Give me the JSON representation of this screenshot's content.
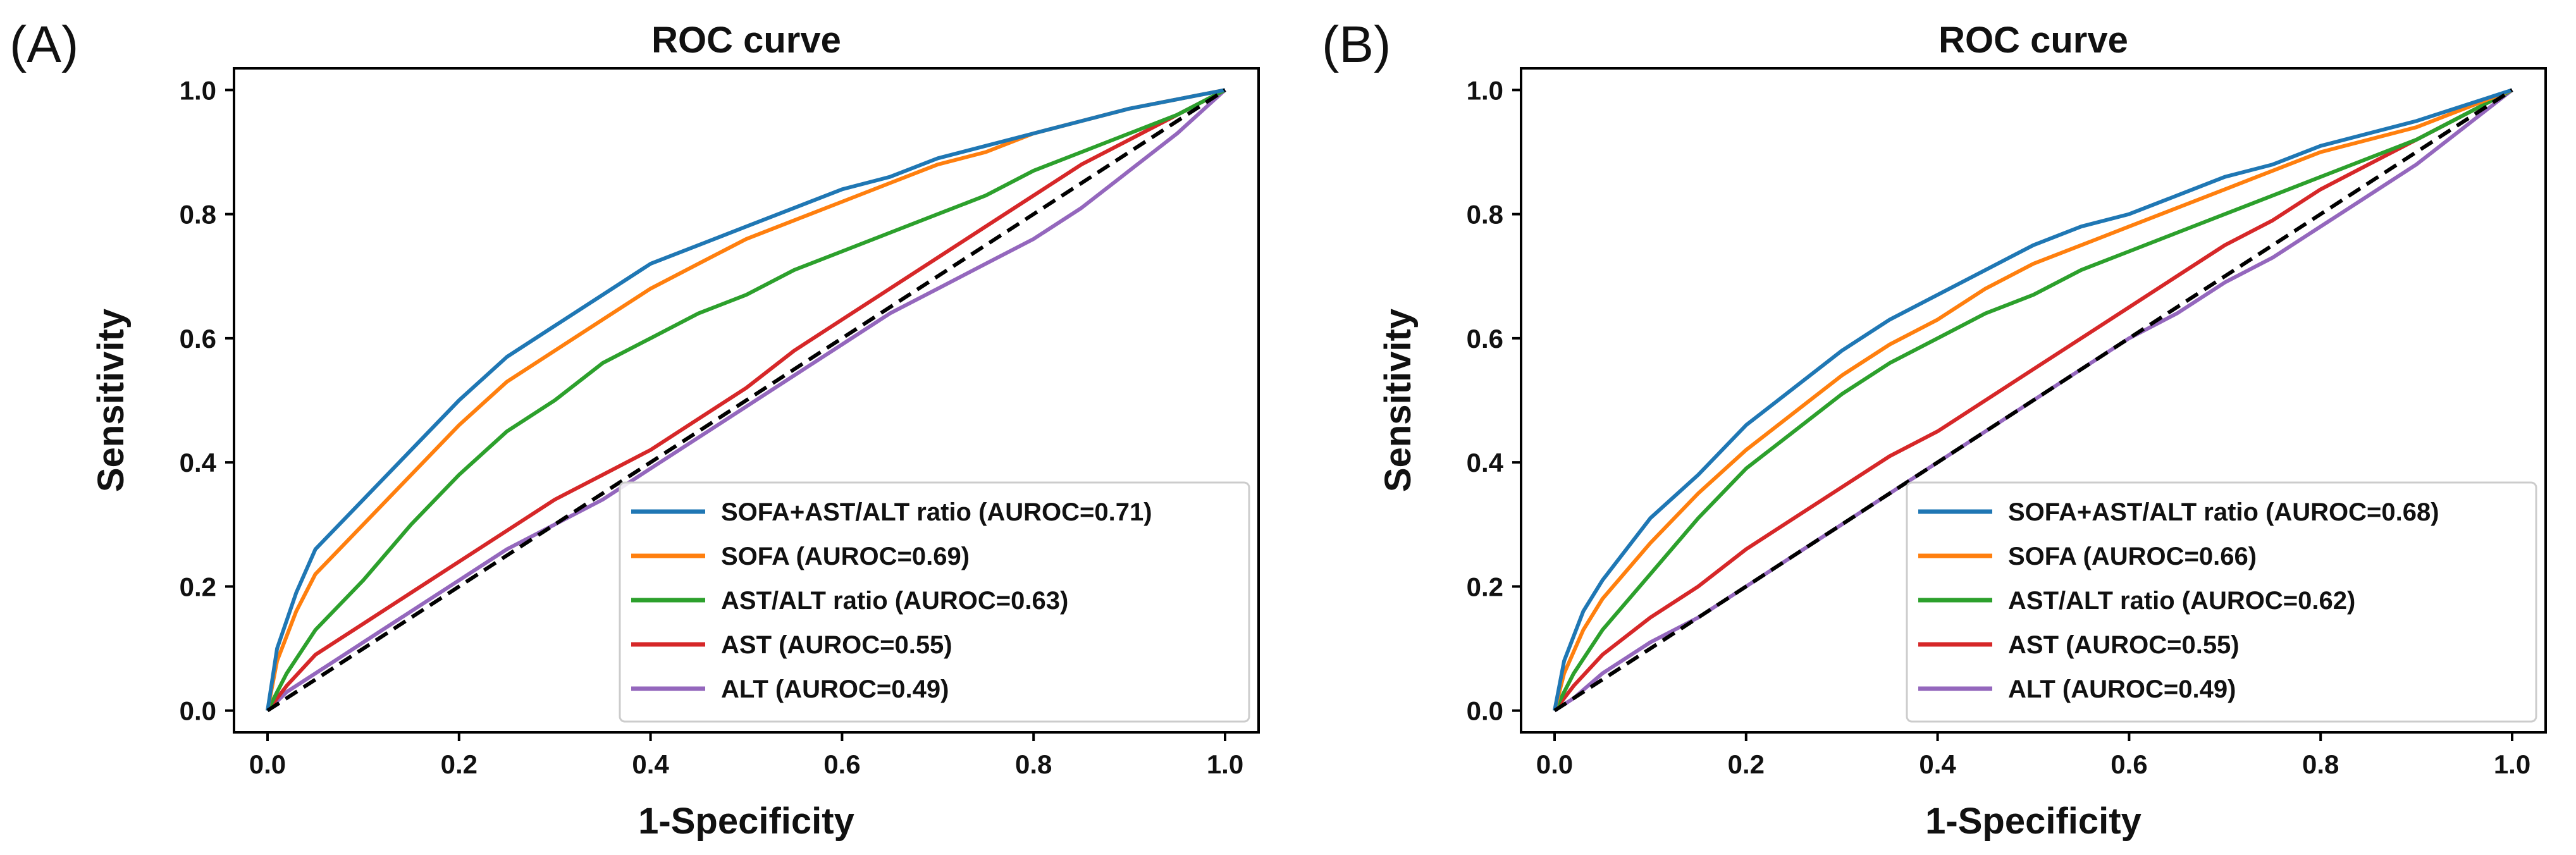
{
  "chart_data": [
    {
      "type": "line",
      "panel_label": "(A)",
      "title": "ROC curve",
      "xlabel": "1-Specificity",
      "ylabel": "Sensitivity",
      "xlim": [
        0,
        1
      ],
      "ylim": [
        0,
        1
      ],
      "xticks": [
        "0.0",
        "0.2",
        "0.4",
        "0.6",
        "0.8",
        "1.0"
      ],
      "yticks": [
        "0.0",
        "0.2",
        "0.4",
        "0.6",
        "0.8",
        "1.0"
      ],
      "grid": false,
      "legend_position": "lower-right",
      "diagonal": {
        "style": "dashed",
        "color": "#000000"
      },
      "series": [
        {
          "name": "SOFA+AST/ALT ratio (AUROC=0.71)",
          "color": "#1f77b4",
          "x": [
            0,
            0.01,
            0.03,
            0.05,
            0.1,
            0.15,
            0.2,
            0.25,
            0.3,
            0.35,
            0.4,
            0.45,
            0.5,
            0.55,
            0.6,
            0.65,
            0.7,
            0.75,
            0.8,
            0.85,
            0.9,
            0.95,
            1.0
          ],
          "y": [
            0,
            0.1,
            0.19,
            0.26,
            0.34,
            0.42,
            0.5,
            0.57,
            0.62,
            0.67,
            0.72,
            0.75,
            0.78,
            0.81,
            0.84,
            0.86,
            0.89,
            0.91,
            0.93,
            0.95,
            0.97,
            0.985,
            1.0
          ]
        },
        {
          "name": "SOFA (AUROC=0.69)",
          "color": "#ff7f0e",
          "x": [
            0,
            0.01,
            0.03,
            0.05,
            0.1,
            0.15,
            0.2,
            0.25,
            0.3,
            0.35,
            0.4,
            0.45,
            0.5,
            0.55,
            0.6,
            0.65,
            0.7,
            0.75,
            0.8,
            0.85,
            0.9,
            0.95,
            1.0
          ],
          "y": [
            0,
            0.08,
            0.16,
            0.22,
            0.3,
            0.38,
            0.46,
            0.53,
            0.58,
            0.63,
            0.68,
            0.72,
            0.76,
            0.79,
            0.82,
            0.85,
            0.88,
            0.9,
            0.93,
            0.95,
            0.97,
            0.985,
            1.0
          ]
        },
        {
          "name": "AST/ALT ratio (AUROC=0.63)",
          "color": "#2ca02c",
          "x": [
            0,
            0.02,
            0.05,
            0.1,
            0.15,
            0.2,
            0.25,
            0.3,
            0.35,
            0.4,
            0.45,
            0.5,
            0.55,
            0.6,
            0.65,
            0.7,
            0.75,
            0.8,
            0.85,
            0.9,
            0.95,
            1.0
          ],
          "y": [
            0,
            0.06,
            0.13,
            0.21,
            0.3,
            0.38,
            0.45,
            0.5,
            0.56,
            0.6,
            0.64,
            0.67,
            0.71,
            0.74,
            0.77,
            0.8,
            0.83,
            0.87,
            0.9,
            0.93,
            0.96,
            1.0
          ]
        },
        {
          "name": "AST (AUROC=0.55)",
          "color": "#d62728",
          "x": [
            0,
            0.02,
            0.05,
            0.1,
            0.15,
            0.2,
            0.25,
            0.3,
            0.35,
            0.4,
            0.45,
            0.5,
            0.55,
            0.6,
            0.65,
            0.7,
            0.75,
            0.8,
            0.85,
            0.9,
            0.95,
            1.0
          ],
          "y": [
            0,
            0.04,
            0.09,
            0.14,
            0.19,
            0.24,
            0.29,
            0.34,
            0.38,
            0.42,
            0.47,
            0.52,
            0.58,
            0.63,
            0.68,
            0.73,
            0.78,
            0.83,
            0.88,
            0.92,
            0.96,
            1.0
          ]
        },
        {
          "name": "ALT (AUROC=0.49)",
          "color": "#9467bd",
          "x": [
            0,
            0.02,
            0.05,
            0.1,
            0.15,
            0.2,
            0.25,
            0.3,
            0.35,
            0.4,
            0.45,
            0.5,
            0.55,
            0.6,
            0.65,
            0.7,
            0.75,
            0.8,
            0.85,
            0.9,
            0.95,
            1.0
          ],
          "y": [
            0,
            0.03,
            0.06,
            0.11,
            0.16,
            0.21,
            0.26,
            0.3,
            0.34,
            0.39,
            0.44,
            0.49,
            0.54,
            0.59,
            0.64,
            0.68,
            0.72,
            0.76,
            0.81,
            0.87,
            0.93,
            1.0
          ]
        }
      ]
    },
    {
      "type": "line",
      "panel_label": "(B)",
      "title": "ROC curve",
      "xlabel": "1-Specificity",
      "ylabel": "Sensitivity",
      "xlim": [
        0,
        1
      ],
      "ylim": [
        0,
        1
      ],
      "xticks": [
        "0.0",
        "0.2",
        "0.4",
        "0.6",
        "0.8",
        "1.0"
      ],
      "yticks": [
        "0.0",
        "0.2",
        "0.4",
        "0.6",
        "0.8",
        "1.0"
      ],
      "grid": false,
      "legend_position": "lower-right",
      "diagonal": {
        "style": "dashed",
        "color": "#000000"
      },
      "series": [
        {
          "name": "SOFA+AST/ALT ratio (AUROC=0.68)",
          "color": "#1f77b4",
          "x": [
            0,
            0.01,
            0.03,
            0.05,
            0.1,
            0.15,
            0.2,
            0.25,
            0.3,
            0.35,
            0.4,
            0.45,
            0.5,
            0.55,
            0.6,
            0.65,
            0.7,
            0.75,
            0.8,
            0.85,
            0.9,
            0.95,
            1.0
          ],
          "y": [
            0,
            0.08,
            0.16,
            0.21,
            0.31,
            0.38,
            0.46,
            0.52,
            0.58,
            0.63,
            0.67,
            0.71,
            0.75,
            0.78,
            0.8,
            0.83,
            0.86,
            0.88,
            0.91,
            0.93,
            0.95,
            0.975,
            1.0
          ]
        },
        {
          "name": "SOFA (AUROC=0.66)",
          "color": "#ff7f0e",
          "x": [
            0,
            0.01,
            0.03,
            0.05,
            0.1,
            0.15,
            0.2,
            0.25,
            0.3,
            0.35,
            0.4,
            0.45,
            0.5,
            0.55,
            0.6,
            0.65,
            0.7,
            0.75,
            0.8,
            0.85,
            0.9,
            0.95,
            1.0
          ],
          "y": [
            0,
            0.06,
            0.13,
            0.18,
            0.27,
            0.35,
            0.42,
            0.48,
            0.54,
            0.59,
            0.63,
            0.68,
            0.72,
            0.75,
            0.78,
            0.81,
            0.84,
            0.87,
            0.9,
            0.92,
            0.94,
            0.97,
            1.0
          ]
        },
        {
          "name": "AST/ALT ratio (AUROC=0.62)",
          "color": "#2ca02c",
          "x": [
            0,
            0.02,
            0.05,
            0.1,
            0.15,
            0.2,
            0.25,
            0.3,
            0.35,
            0.4,
            0.45,
            0.5,
            0.55,
            0.6,
            0.65,
            0.7,
            0.75,
            0.8,
            0.85,
            0.9,
            0.95,
            1.0
          ],
          "y": [
            0,
            0.06,
            0.13,
            0.22,
            0.31,
            0.39,
            0.45,
            0.51,
            0.56,
            0.6,
            0.64,
            0.67,
            0.71,
            0.74,
            0.77,
            0.8,
            0.83,
            0.86,
            0.89,
            0.92,
            0.96,
            1.0
          ]
        },
        {
          "name": "AST (AUROC=0.55)",
          "color": "#d62728",
          "x": [
            0,
            0.02,
            0.05,
            0.1,
            0.15,
            0.2,
            0.25,
            0.3,
            0.35,
            0.4,
            0.45,
            0.5,
            0.55,
            0.6,
            0.65,
            0.7,
            0.75,
            0.8,
            0.85,
            0.9,
            0.95,
            1.0
          ],
          "y": [
            0,
            0.04,
            0.09,
            0.15,
            0.2,
            0.26,
            0.31,
            0.36,
            0.41,
            0.45,
            0.5,
            0.55,
            0.6,
            0.65,
            0.7,
            0.75,
            0.79,
            0.84,
            0.88,
            0.92,
            0.96,
            1.0
          ]
        },
        {
          "name": "ALT (AUROC=0.49)",
          "color": "#9467bd",
          "x": [
            0,
            0.02,
            0.05,
            0.1,
            0.15,
            0.2,
            0.25,
            0.3,
            0.35,
            0.4,
            0.45,
            0.5,
            0.55,
            0.6,
            0.65,
            0.7,
            0.75,
            0.8,
            0.85,
            0.9,
            0.95,
            1.0
          ],
          "y": [
            0,
            0.02,
            0.06,
            0.11,
            0.15,
            0.2,
            0.25,
            0.3,
            0.35,
            0.4,
            0.45,
            0.5,
            0.55,
            0.6,
            0.64,
            0.69,
            0.73,
            0.78,
            0.83,
            0.88,
            0.94,
            1.0
          ]
        }
      ]
    }
  ]
}
